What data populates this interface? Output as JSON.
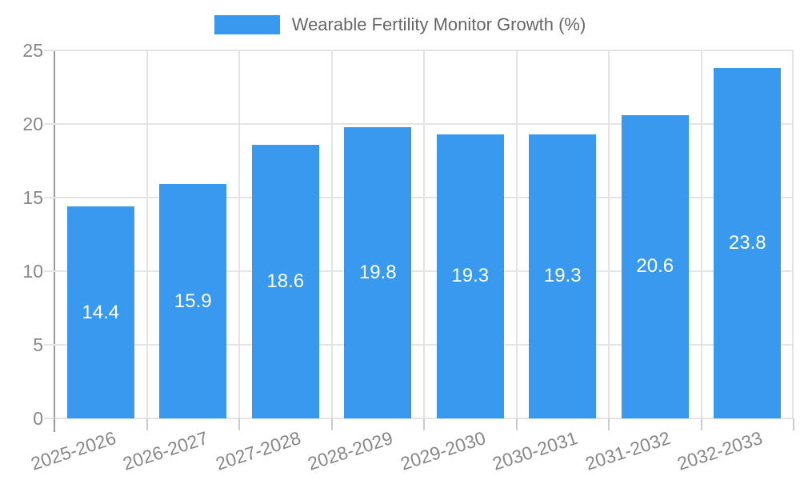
{
  "legend": {
    "label": "Wearable Fertility Monitor Growth (%)"
  },
  "chart_data": {
    "type": "bar",
    "title": "Wearable Fertility Monitor Growth (%)",
    "categories": [
      "2025-2026",
      "2026-2027",
      "2027-2028",
      "2028-2029",
      "2029-2030",
      "2030-2031",
      "2031-2032",
      "2032-2033"
    ],
    "values": [
      14.4,
      15.9,
      18.6,
      19.8,
      19.3,
      19.3,
      20.6,
      23.8
    ],
    "value_labels": [
      "14.4",
      "15.9",
      "18.6",
      "19.8",
      "19.3",
      "19.3",
      "20.6",
      "23.8"
    ],
    "xlabel": "",
    "ylabel": "",
    "ylim": [
      0,
      25
    ],
    "yticks": [
      0,
      5,
      10,
      15,
      20,
      25
    ],
    "grid": true,
    "legend_position": "top-center",
    "colors": {
      "bar": "#3899EE",
      "gridline": "#E4E4E4",
      "axis_line": "#999999",
      "tick_mark": "#CCCCCC",
      "tick_label": "#888888",
      "legend_text": "#666666",
      "value_label": "#FFFFFF",
      "background": "#FFFFFF"
    }
  }
}
